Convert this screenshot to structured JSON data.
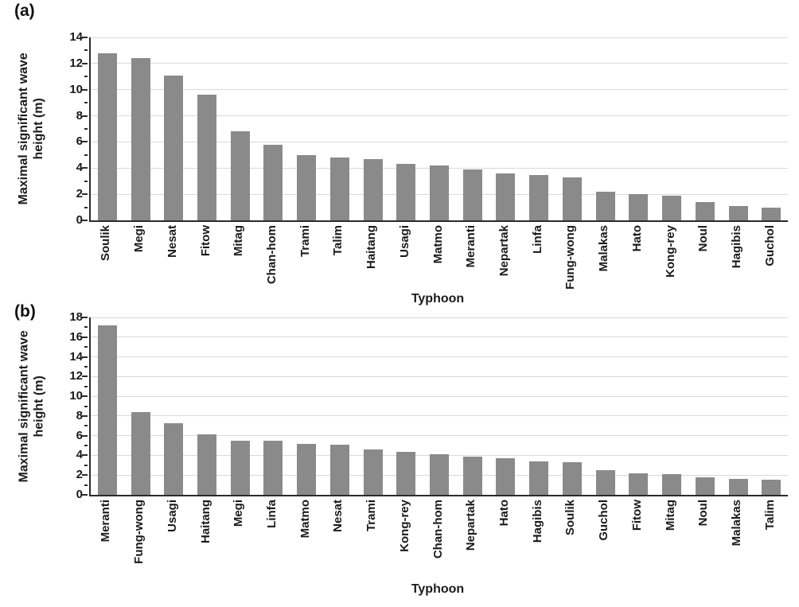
{
  "chart_data": [
    {
      "type": "bar",
      "panel_label": "(a)",
      "title": "",
      "xlabel": "Typhoon",
      "ylabel": "Maximal significant wave height (m)",
      "ylim": [
        0,
        14
      ],
      "ytick_step": 2,
      "grid": true,
      "legend": "none",
      "bar_color": "#8a8a8a",
      "categories": [
        "Soulik",
        "Megi",
        "Nesat",
        "Fitow",
        "Mitag",
        "Chan-hom",
        "Trami",
        "Talim",
        "Haitang",
        "Usagi",
        "Matmo",
        "Meranti",
        "Nepartak",
        "Linfa",
        "Fung-wong",
        "Malakas",
        "Hato",
        "Kong-rey",
        "Noul",
        "Hagibis",
        "Guchol"
      ],
      "values": [
        12.8,
        12.4,
        11.1,
        9.6,
        6.8,
        5.8,
        5.0,
        4.8,
        4.7,
        4.3,
        4.2,
        3.9,
        3.6,
        3.5,
        3.3,
        2.2,
        2.0,
        1.9,
        1.4,
        1.1,
        1.0
      ]
    },
    {
      "type": "bar",
      "panel_label": "(b)",
      "title": "",
      "xlabel": "Typhoon",
      "ylabel": "Maximal significant wave height (m)",
      "ylim": [
        0,
        18
      ],
      "ytick_step": 2,
      "grid": true,
      "legend": "none",
      "bar_color": "#8a8a8a",
      "categories": [
        "Meranti",
        "Fung-wong",
        "Usagi",
        "Haitang",
        "Megi",
        "Linfa",
        "Matmo",
        "Nesat",
        "Trami",
        "Kong-rey",
        "Chan-hom",
        "Nepartak",
        "Hato",
        "Hagibis",
        "Soulik",
        "Guchol",
        "Fitow",
        "Mitag",
        "Noul",
        "Malakas",
        "Talim"
      ],
      "values": [
        17.2,
        8.4,
        7.3,
        6.1,
        5.5,
        5.5,
        5.2,
        5.1,
        4.6,
        4.4,
        4.1,
        3.9,
        3.7,
        3.4,
        3.3,
        2.5,
        2.2,
        2.1,
        1.8,
        1.6,
        1.5
      ]
    }
  ]
}
